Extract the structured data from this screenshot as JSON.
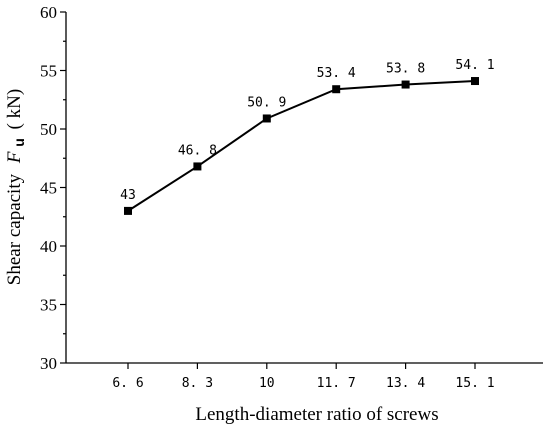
{
  "chart_data": {
    "type": "line",
    "categories": [
      "6. 6",
      "8. 3",
      "10",
      "11. 7",
      "13. 4",
      "15. 1"
    ],
    "values": [
      43,
      46.8,
      50.9,
      53.4,
      53.8,
      54.1
    ],
    "data_labels": [
      "43",
      "46. 8",
      "50. 9",
      "53. 4",
      "53. 8",
      "54. 1"
    ],
    "xlabel": "Length-diameter ratio of screws",
    "ylabel": {
      "prefix": "Shear capacity",
      "symbol": "F",
      "subscript": "u",
      "unit": "( kN)"
    },
    "ylim": [
      30,
      60
    ],
    "yticks": [
      "30",
      "35",
      "40",
      "45",
      "50",
      "55",
      "60"
    ],
    "grid": false,
    "marker": "square",
    "line_color": "#000000"
  }
}
